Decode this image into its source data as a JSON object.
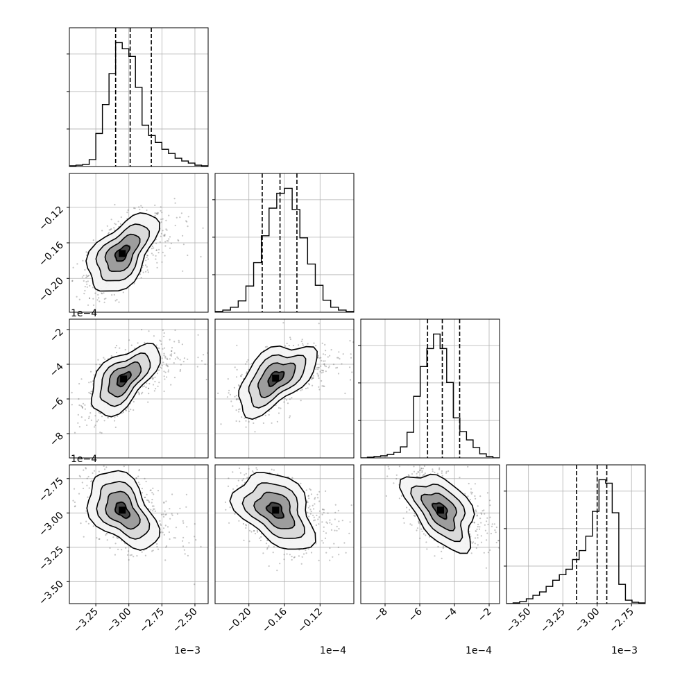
{
  "chart_data": {
    "type": "corner",
    "description_free": true,
    "parameters": [
      {
        "index": 0,
        "range": [
          -3.45,
          -2.4
        ],
        "ticks": [
          -3.25,
          -3.0,
          -2.75,
          -2.5
        ],
        "tick_labels": [
          "−3.25",
          "−3.00",
          "−2.75",
          "−2.50"
        ],
        "offset": "1e−3",
        "quantiles": [
          -3.1,
          -2.99,
          -2.83
        ],
        "histogram": [
          1,
          2,
          3,
          10,
          48,
          90,
          135,
          180,
          171,
          160,
          115,
          60,
          45,
          35,
          25,
          19,
          12,
          8,
          5,
          2,
          1
        ]
      },
      {
        "index": 1,
        "range": [
          -0.238,
          -0.082
        ],
        "ticks": [
          -0.2,
          -0.16,
          -0.12
        ],
        "tick_labels": [
          "−0.20",
          "−0.16",
          "−0.12"
        ],
        "offset": "1e−4",
        "quantiles": [
          -0.185,
          -0.165,
          -0.146
        ],
        "histogram": [
          1,
          3,
          7,
          16,
          37,
          70,
          108,
          147,
          168,
          175,
          145,
          105,
          68,
          38,
          17,
          7,
          3,
          1
        ]
      },
      {
        "index": 2,
        "range": [
          -9.4,
          -1.4
        ],
        "ticks": [
          -8,
          -6,
          -4,
          -2
        ],
        "tick_labels": [
          "−8",
          "−6",
          "−4",
          "−2"
        ],
        "offset": "1e−4",
        "quantiles": [
          -5.55,
          -4.7,
          -3.7
        ],
        "histogram": [
          0,
          1,
          2,
          3,
          5,
          8,
          16,
          37,
          89,
          132,
          158,
          179,
          158,
          109,
          58,
          38,
          26,
          15,
          6,
          2,
          0
        ]
      },
      {
        "index": 3,
        "range": [
          -3.66,
          -2.65
        ],
        "ticks": [
          -3.5,
          -3.25,
          -3.0,
          -2.75
        ],
        "tick_labels": [
          "−3.50",
          "−3.25",
          "−3.00",
          "−2.75"
        ],
        "offset": "1e−3",
        "quantiles": [
          -3.15,
          -3.0,
          -2.93
        ],
        "histogram": [
          0,
          1,
          3,
          7,
          12,
          17,
          25,
          34,
          42,
          50,
          64,
          77,
          98,
          134,
          180,
          175,
          132,
          28,
          5,
          2,
          1
        ]
      }
    ],
    "pairs": [
      {
        "row": 1,
        "col": 0,
        "mean": [
          -3.05,
          -0.172
        ],
        "sd": [
          0.13,
          0.022
        ],
        "rho": 0.55
      },
      {
        "row": 2,
        "col": 0,
        "mean": [
          -3.04,
          -4.85
        ],
        "sd": [
          0.13,
          1.0
        ],
        "rho": 0.6
      },
      {
        "row": 2,
        "col": 1,
        "mean": [
          -0.17,
          -4.8
        ],
        "sd": [
          0.022,
          1.0
        ],
        "rho": 0.55
      },
      {
        "row": 3,
        "col": 0,
        "mean": [
          -3.05,
          -2.98
        ],
        "sd": [
          0.13,
          0.14
        ],
        "rho": -0.45
      },
      {
        "row": 3,
        "col": 1,
        "mean": [
          -0.17,
          -2.98
        ],
        "sd": [
          0.022,
          0.14
        ],
        "rho": -0.4
      },
      {
        "row": 3,
        "col": 2,
        "mean": [
          -4.8,
          -2.98
        ],
        "sd": [
          1.0,
          0.14
        ],
        "rho": -0.5
      }
    ],
    "grid": true,
    "contour_levels": 4,
    "colors": {
      "line": "#000000",
      "grid": "#b0b0b0",
      "points": "#555555"
    }
  }
}
